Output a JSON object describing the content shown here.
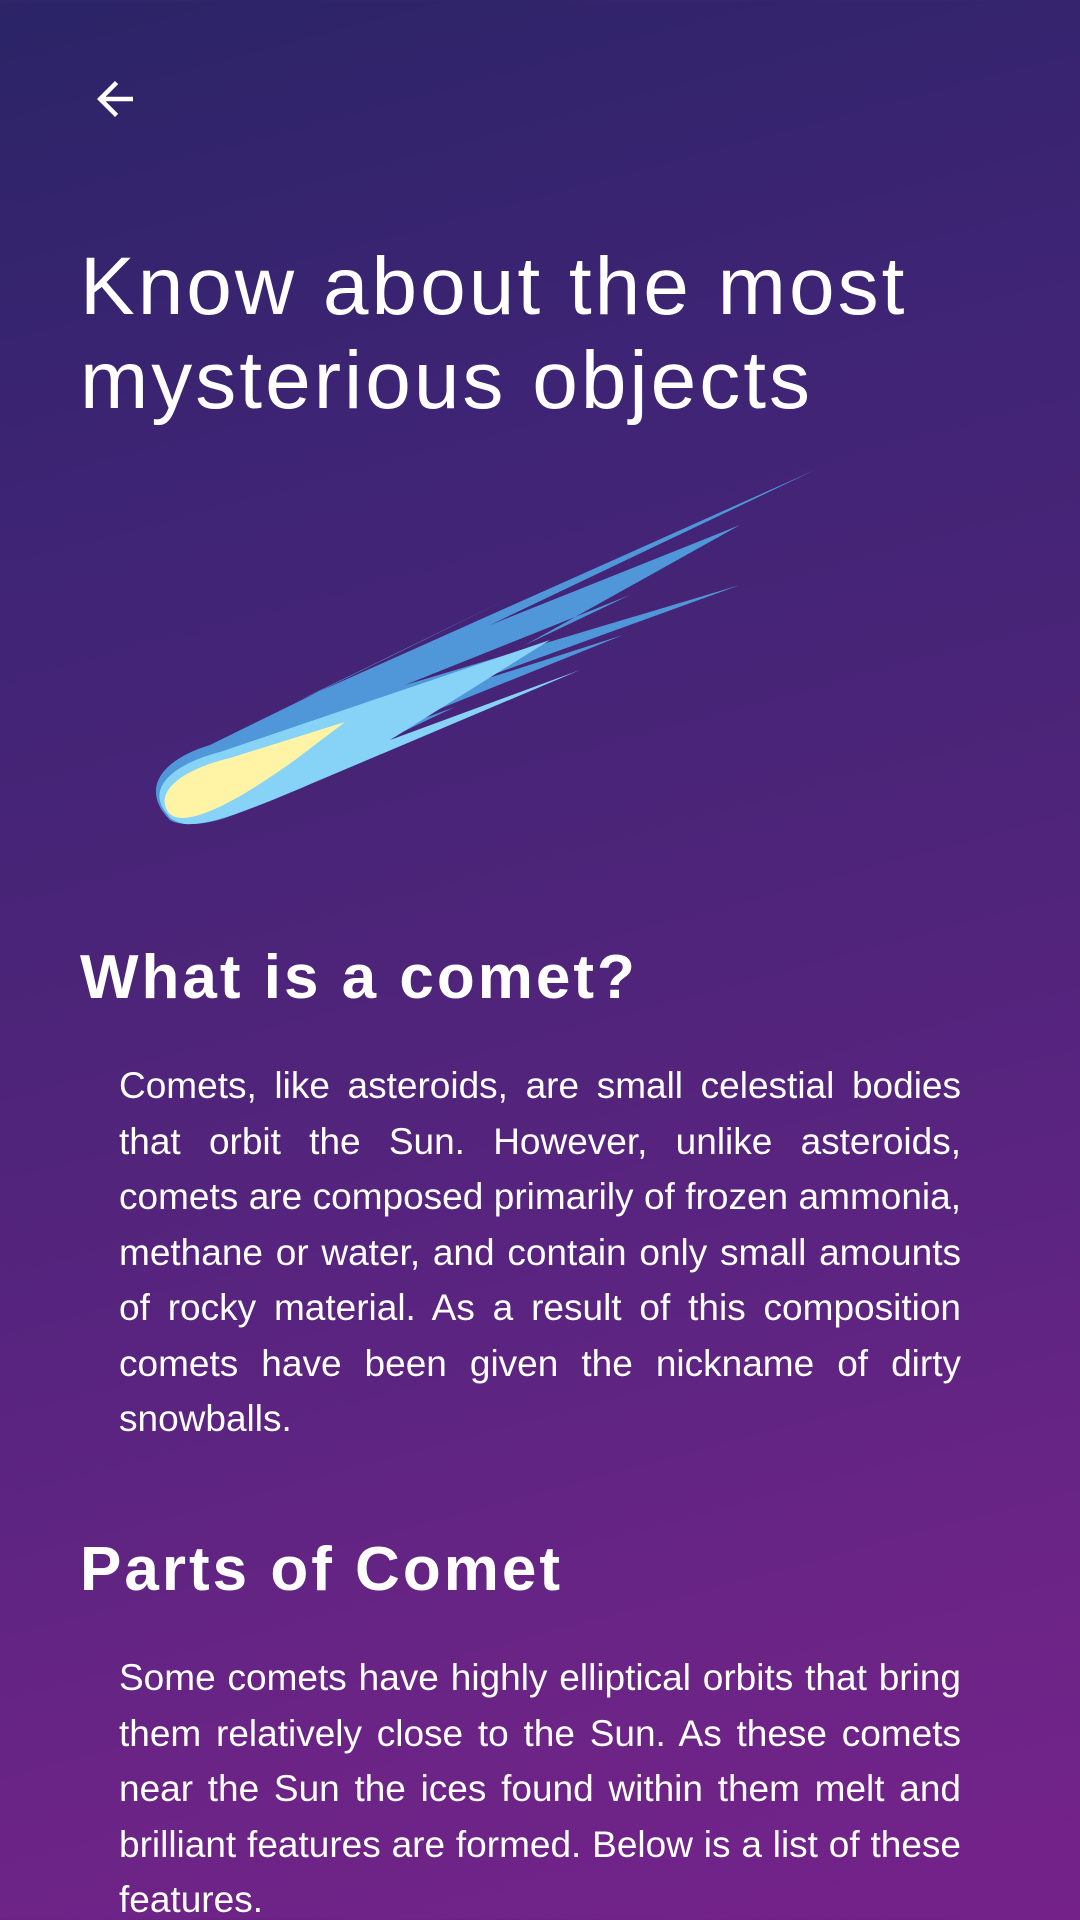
{
  "header": {
    "back_icon": "arrow-left-icon"
  },
  "hero": {
    "title": "Know about the most mysterious objects",
    "illustration": "comet-illustration"
  },
  "sections": [
    {
      "heading": "What is a comet?",
      "body": "Comets, like asteroids, are small celestial bodies that orbit the Sun. However, unlike asteroids, comets are composed primarily of frozen ammonia, methane or water, and contain only small amounts of rocky material. As a result of this composition comets have been given the nickname of dirty snowballs."
    },
    {
      "heading": "Parts of Comet",
      "body": "Some comets have highly elliptical orbits that bring them relatively close to the Sun. As these comets near the Sun the ices found within them melt and brilliant features are formed. Below is a list of these features."
    }
  ],
  "colors": {
    "background_top": "#2b2467",
    "background_bottom": "#74228a",
    "comet_tail_dark": "#4f97d8",
    "comet_tail_light": "#86d3f7",
    "comet_head": "#fff3a6"
  }
}
